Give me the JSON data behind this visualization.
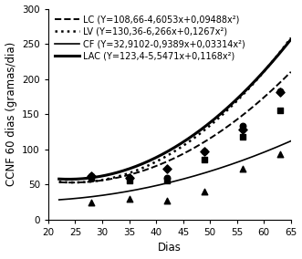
{
  "title": "",
  "xlabel": "Dias",
  "ylabel": "CCNF 60 dias (gramas/dia)",
  "xlim": [
    22,
    65
  ],
  "ylim": [
    0,
    300
  ],
  "xticks": [
    20,
    25,
    30,
    35,
    40,
    45,
    50,
    55,
    60,
    65
  ],
  "yticks": [
    0,
    50,
    100,
    150,
    200,
    250,
    300
  ],
  "curves": {
    "LC": {
      "a": 108.66,
      "b": -4.6053,
      "c": 0.09488,
      "label": "LC (Y=108,66-4,6053x+0,09488x²)"
    },
    "LV": {
      "a": 130.36,
      "b": -6.266,
      "c": 0.1267,
      "label": "LV (Y=130,36-6,266x+0,1267x²)"
    },
    "CF": {
      "a": 32.9102,
      "b": -0.9389,
      "c": 0.03314,
      "label": "CF (Y=32,9102-0,9389x+0,03314x²)"
    },
    "LAC": {
      "a": 123.4,
      "b": -5.5471,
      "c": 0.1168,
      "label": "LAC (Y=123,4-5,5471x+0,1168x²)"
    }
  },
  "scatter": {
    "LC": {
      "marker": "s",
      "x": [
        28,
        35,
        42,
        49,
        56,
        63
      ],
      "y": [
        60,
        55,
        55,
        85,
        118,
        155
      ]
    },
    "LV": {
      "marker": "o",
      "x": [
        28,
        35,
        42,
        49,
        56,
        63
      ],
      "y": [
        62,
        60,
        60,
        97,
        133,
        183
      ]
    },
    "CF": {
      "marker": "^",
      "x": [
        28,
        35,
        42,
        49,
        56,
        63
      ],
      "y": [
        25,
        30,
        27,
        40,
        72,
        93
      ]
    },
    "LAC": {
      "marker": "D",
      "x": [
        28,
        35,
        42,
        49,
        56,
        63
      ],
      "y": [
        62,
        60,
        73,
        97,
        128,
        182
      ]
    }
  },
  "styles": {
    "LC": {
      "ls": "--",
      "lw": 1.4
    },
    "LV": {
      "ls": ":",
      "lw": 1.8
    },
    "CF": {
      "ls": "-",
      "lw": 1.2
    },
    "LAC": {
      "ls": "-",
      "lw": 2.2
    }
  },
  "color": "black",
  "legend_fontsize": 7.0,
  "tick_fontsize": 7.5,
  "label_fontsize": 8.5
}
